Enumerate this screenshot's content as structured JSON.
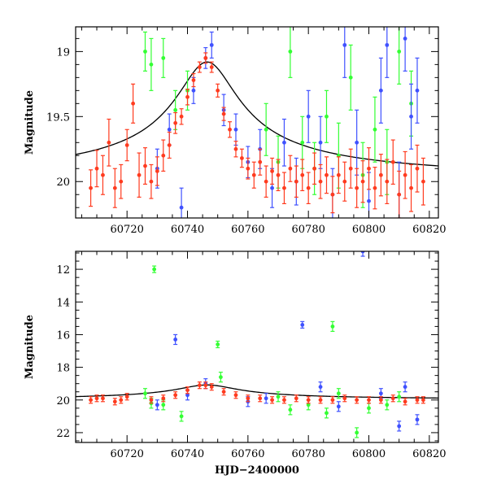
{
  "chart_data": [
    {
      "type": "scatter",
      "panel": "top",
      "xlabel": "",
      "ylabel": "Magnitude",
      "xlim": [
        60703,
        60823
      ],
      "ylim": [
        20.28,
        18.81
      ],
      "y_inverted": true,
      "xticks": [
        60720,
        60740,
        60760,
        60780,
        60800,
        60820
      ],
      "yticks": [
        19,
        19.5,
        20
      ],
      "ytick_labels": [
        "19",
        "19.5",
        "20"
      ],
      "model_curve": {
        "baseline": 20.0,
        "peak_mag": 19.08,
        "peak_time": 60746.5,
        "width_days": 7.5
      },
      "series": [
        {
          "color": "#ff3b1f",
          "values": [
            [
              60708,
              20.05,
              0.14
            ],
            [
              60710,
              19.9,
              0.14
            ],
            [
              60712,
              19.95,
              0.15
            ],
            [
              60714,
              19.7,
              0.18
            ],
            [
              60716,
              20.05,
              0.15
            ],
            [
              60718,
              20.0,
              0.13
            ],
            [
              60720,
              19.72,
              0.12
            ],
            [
              60722,
              19.4,
              0.15
            ],
            [
              60724,
              19.95,
              0.17
            ],
            [
              60726,
              19.88,
              0.14
            ],
            [
              60728,
              20.0,
              0.13
            ],
            [
              60730,
              19.92,
              0.11
            ],
            [
              60732,
              19.8,
              0.12
            ],
            [
              60734,
              19.72,
              0.1
            ],
            [
              60736,
              19.55,
              0.08
            ],
            [
              60738,
              19.5,
              0.06
            ],
            [
              60740,
              19.35,
              0.06
            ],
            [
              60742,
              19.22,
              0.05
            ],
            [
              60744,
              19.12,
              0.04
            ],
            [
              60746,
              19.05,
              0.04
            ],
            [
              60748,
              19.12,
              0.04
            ],
            [
              60750,
              19.3,
              0.05
            ],
            [
              60752,
              19.48,
              0.05
            ],
            [
              60754,
              19.6,
              0.06
            ],
            [
              60756,
              19.75,
              0.06
            ],
            [
              60758,
              19.82,
              0.07
            ],
            [
              60760,
              19.9,
              0.08
            ],
            [
              60762,
              19.95,
              0.1
            ],
            [
              60764,
              19.85,
              0.1
            ],
            [
              60766,
              20.0,
              0.12
            ],
            [
              60768,
              19.92,
              0.1
            ],
            [
              60770,
              19.95,
              0.12
            ],
            [
              60772,
              20.05,
              0.12
            ],
            [
              60774,
              19.9,
              0.1
            ],
            [
              60776,
              20.0,
              0.12
            ],
            [
              60778,
              19.95,
              0.12
            ],
            [
              60780,
              20.05,
              0.12
            ],
            [
              60782,
              19.9,
              0.12
            ],
            [
              60784,
              20.0,
              0.13
            ],
            [
              60786,
              19.95,
              0.14
            ],
            [
              60788,
              20.1,
              0.14
            ],
            [
              60790,
              19.95,
              0.14
            ],
            [
              60792,
              20.0,
              0.15
            ],
            [
              60794,
              19.9,
              0.15
            ],
            [
              60796,
              20.05,
              0.15
            ],
            [
              60798,
              20.0,
              0.16
            ],
            [
              60800,
              19.9,
              0.16
            ],
            [
              60802,
              20.05,
              0.16
            ],
            [
              60804,
              19.95,
              0.16
            ],
            [
              60806,
              20.0,
              0.17
            ],
            [
              60808,
              19.85,
              0.17
            ],
            [
              60810,
              20.1,
              0.18
            ],
            [
              60812,
              19.95,
              0.18
            ],
            [
              60814,
              20.05,
              0.18
            ],
            [
              60816,
              19.9,
              0.18
            ],
            [
              60818,
              20.0,
              0.18
            ]
          ]
        },
        {
          "color": "#3f51ff",
          "values": [
            [
              60730,
              19.9,
              0.15
            ],
            [
              60734,
              19.6,
              0.12
            ],
            [
              60738,
              20.2,
              0.15
            ],
            [
              60742,
              19.3,
              0.1
            ],
            [
              60746,
              19.05,
              0.08
            ],
            [
              60748,
              18.95,
              0.1
            ],
            [
              60752,
              19.45,
              0.12
            ],
            [
              60756,
              19.6,
              0.12
            ],
            [
              60760,
              19.85,
              0.12
            ],
            [
              60764,
              19.75,
              0.15
            ],
            [
              60768,
              20.05,
              0.15
            ],
            [
              60772,
              19.7,
              0.18
            ],
            [
              60776,
              20.0,
              0.18
            ],
            [
              60780,
              19.5,
              0.2
            ],
            [
              60784,
              19.7,
              0.2
            ],
            [
              60788,
              20.1,
              0.2
            ],
            [
              60792,
              18.95,
              0.25
            ],
            [
              60796,
              19.7,
              0.25
            ],
            [
              60800,
              20.15,
              0.22
            ],
            [
              60804,
              19.3,
              0.25
            ],
            [
              60806,
              18.95,
              0.25
            ],
            [
              60810,
              20.1,
              0.25
            ],
            [
              60812,
              18.9,
              0.25
            ],
            [
              60814,
              19.5,
              0.25
            ],
            [
              60816,
              19.3,
              0.25
            ]
          ]
        },
        {
          "color": "#33ff33",
          "values": [
            [
              60726,
              19.0,
              0.15
            ],
            [
              60728,
              19.1,
              0.2
            ],
            [
              60732,
              19.05,
              0.15
            ],
            [
              60736,
              19.45,
              0.15
            ],
            [
              60740,
              19.3,
              0.15
            ],
            [
              60766,
              19.6,
              0.2
            ],
            [
              60770,
              19.85,
              0.2
            ],
            [
              60774,
              19.0,
              0.2
            ],
            [
              60778,
              19.7,
              0.2
            ],
            [
              60782,
              19.9,
              0.2
            ],
            [
              60786,
              19.5,
              0.2
            ],
            [
              60790,
              19.8,
              0.25
            ],
            [
              60794,
              19.2,
              0.25
            ],
            [
              60798,
              19.95,
              0.25
            ],
            [
              60802,
              19.6,
              0.25
            ],
            [
              60806,
              19.85,
              0.25
            ],
            [
              60810,
              19.0,
              0.25
            ],
            [
              60814,
              19.4,
              0.25
            ]
          ]
        }
      ]
    },
    {
      "type": "scatter",
      "panel": "bottom",
      "xlabel": "HJD−2400000",
      "ylabel": "Magnitude",
      "xlim": [
        60703,
        60823
      ],
      "ylim": [
        22.6,
        10.9
      ],
      "y_inverted": true,
      "xticks": [
        60720,
        60740,
        60760,
        60780,
        60800,
        60820
      ],
      "yticks": [
        12,
        14,
        16,
        18,
        20,
        22
      ],
      "ytick_labels": [
        "12",
        "14",
        "16",
        "18",
        "20",
        "22"
      ],
      "model_curve": {
        "baseline": 20.0,
        "peak_mag": 19.08,
        "peak_time": 60746.5,
        "width_days": 7.5
      },
      "series": [
        {
          "color": "#ff3b1f",
          "values": [
            [
              60708,
              20.0,
              0.2
            ],
            [
              60710,
              19.9,
              0.2
            ],
            [
              60712,
              19.9,
              0.2
            ],
            [
              60716,
              20.1,
              0.2
            ],
            [
              60718,
              20.0,
              0.2
            ],
            [
              60720,
              19.8,
              0.2
            ],
            [
              60728,
              20.0,
              0.2
            ],
            [
              60732,
              19.9,
              0.2
            ],
            [
              60736,
              19.7,
              0.2
            ],
            [
              60740,
              19.4,
              0.2
            ],
            [
              60744,
              19.1,
              0.2
            ],
            [
              60746,
              19.1,
              0.2
            ],
            [
              60748,
              19.2,
              0.2
            ],
            [
              60752,
              19.5,
              0.2
            ],
            [
              60756,
              19.7,
              0.2
            ],
            [
              60760,
              19.9,
              0.2
            ],
            [
              60764,
              19.9,
              0.2
            ],
            [
              60768,
              20.0,
              0.2
            ],
            [
              60772,
              20.0,
              0.2
            ],
            [
              60776,
              19.9,
              0.2
            ],
            [
              60780,
              20.0,
              0.2
            ],
            [
              60784,
              20.0,
              0.2
            ],
            [
              60788,
              20.0,
              0.2
            ],
            [
              60792,
              19.9,
              0.2
            ],
            [
              60796,
              20.0,
              0.2
            ],
            [
              60800,
              20.0,
              0.2
            ],
            [
              60804,
              20.0,
              0.2
            ],
            [
              60808,
              19.9,
              0.2
            ],
            [
              60812,
              20.1,
              0.2
            ],
            [
              60816,
              20.0,
              0.2
            ],
            [
              60818,
              20.0,
              0.2
            ]
          ]
        },
        {
          "color": "#3f51ff",
          "values": [
            [
              60730,
              20.3,
              0.3
            ],
            [
              60736,
              16.3,
              0.3
            ],
            [
              60740,
              19.7,
              0.3
            ],
            [
              60746,
              19.0,
              0.3
            ],
            [
              60760,
              20.1,
              0.3
            ],
            [
              60766,
              19.9,
              0.3
            ],
            [
              60778,
              15.4,
              0.2
            ],
            [
              60784,
              19.2,
              0.3
            ],
            [
              60790,
              20.4,
              0.3
            ],
            [
              60798,
              10.9,
              0.3
            ],
            [
              60804,
              19.6,
              0.3
            ],
            [
              60810,
              21.6,
              0.3
            ],
            [
              60812,
              19.2,
              0.3
            ],
            [
              60816,
              21.2,
              0.3
            ]
          ]
        },
        {
          "color": "#33ff33",
          "values": [
            [
              60726,
              19.6,
              0.3
            ],
            [
              60728,
              20.2,
              0.3
            ],
            [
              60729,
              12.0,
              0.2
            ],
            [
              60732,
              20.3,
              0.3
            ],
            [
              60738,
              21.0,
              0.3
            ],
            [
              60750,
              16.6,
              0.2
            ],
            [
              60751,
              18.6,
              0.3
            ],
            [
              60770,
              19.8,
              0.3
            ],
            [
              60774,
              20.6,
              0.3
            ],
            [
              60780,
              20.3,
              0.3
            ],
            [
              60786,
              20.8,
              0.3
            ],
            [
              60788,
              15.5,
              0.3
            ],
            [
              60790,
              19.6,
              0.3
            ],
            [
              60796,
              22.0,
              0.3
            ],
            [
              60800,
              20.5,
              0.3
            ],
            [
              60806,
              20.3,
              0.3
            ],
            [
              60810,
              19.8,
              0.3
            ]
          ]
        }
      ]
    }
  ]
}
